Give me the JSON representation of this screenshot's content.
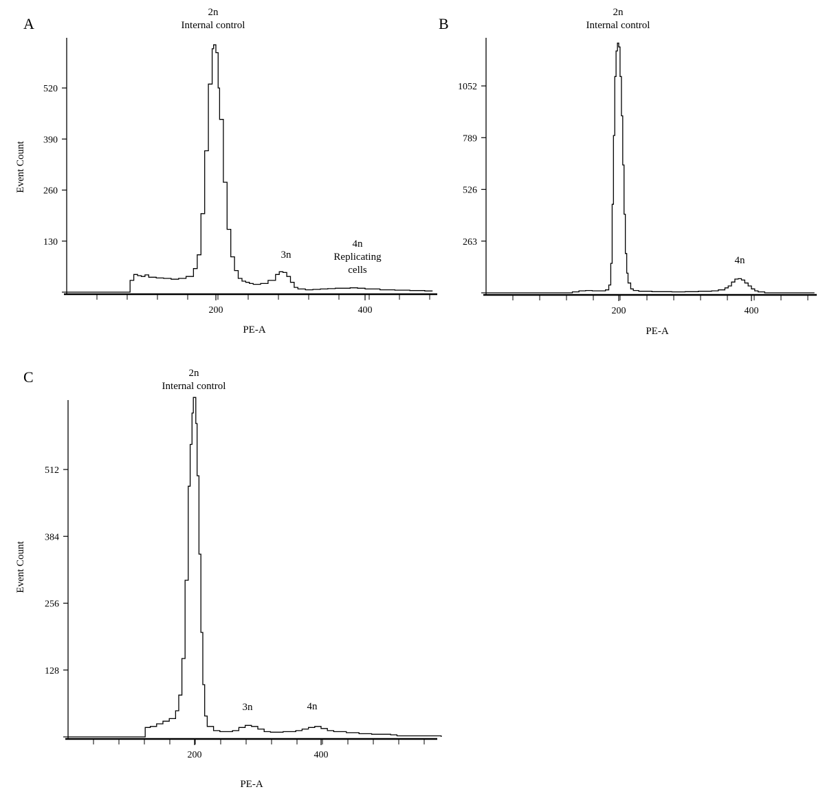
{
  "chart_data": [
    {
      "panel": "A",
      "type": "area",
      "xlabel": "PE-A",
      "ylabel": "Event Count",
      "xlim": [
        0,
        490
      ],
      "ylim": [
        0,
        630
      ],
      "xticks": [
        200,
        400
      ],
      "yticks": [
        130,
        260,
        390,
        520
      ],
      "annotations": [
        {
          "lines": [
            "2n",
            "Internal control"
          ],
          "x": 200
        },
        {
          "lines": [
            "3n"
          ],
          "x": 290
        },
        {
          "lines": [
            "4n",
            "Replicating",
            "cells"
          ],
          "x": 380
        }
      ],
      "x": [
        0,
        84,
        85,
        90,
        95,
        100,
        105,
        110,
        120,
        130,
        140,
        150,
        160,
        170,
        175,
        180,
        185,
        190,
        195,
        197,
        200,
        203,
        205,
        210,
        215,
        220,
        225,
        230,
        235,
        240,
        245,
        250,
        260,
        270,
        280,
        285,
        290,
        295,
        300,
        305,
        310,
        320,
        330,
        340,
        350,
        360,
        370,
        380,
        390,
        400,
        420,
        440,
        460,
        480,
        490
      ],
      "y": [
        0,
        0,
        30,
        45,
        42,
        40,
        44,
        38,
        36,
        35,
        33,
        35,
        40,
        60,
        95,
        200,
        360,
        530,
        620,
        630,
        610,
        520,
        440,
        280,
        160,
        90,
        55,
        35,
        28,
        25,
        22,
        20,
        22,
        30,
        45,
        52,
        50,
        40,
        25,
        12,
        8,
        6,
        7,
        8,
        9,
        10,
        10,
        11,
        10,
        8,
        6,
        5,
        4,
        3,
        2
      ]
    },
    {
      "panel": "B",
      "type": "area",
      "xlabel": "PE-A",
      "ylabel": "",
      "xlim": [
        0,
        495
      ],
      "ylim": [
        0,
        1270
      ],
      "xticks": [
        200,
        400
      ],
      "yticks": [
        263,
        526,
        789,
        1052
      ],
      "annotations": [
        {
          "lines": [
            "2n",
            "Internal control"
          ],
          "x": 200
        },
        {
          "lines": [
            "4n"
          ],
          "x": 380
        }
      ],
      "x": [
        0,
        100,
        130,
        140,
        150,
        160,
        170,
        180,
        185,
        188,
        190,
        192,
        194,
        196,
        198,
        200,
        202,
        204,
        206,
        208,
        210,
        212,
        214,
        218,
        222,
        230,
        250,
        280,
        300,
        320,
        340,
        350,
        360,
        365,
        370,
        375,
        380,
        385,
        390,
        395,
        400,
        405,
        410,
        420,
        495
      ],
      "y": [
        0,
        0,
        5,
        10,
        12,
        10,
        10,
        15,
        40,
        150,
        450,
        800,
        1100,
        1230,
        1270,
        1250,
        1100,
        900,
        650,
        400,
        200,
        100,
        50,
        20,
        12,
        8,
        6,
        5,
        6,
        8,
        10,
        15,
        25,
        35,
        55,
        70,
        72,
        65,
        50,
        35,
        20,
        10,
        5,
        0,
        0
      ]
    },
    {
      "panel": "C",
      "type": "area",
      "xlabel": "PE-A",
      "ylabel": "Event Count",
      "xlim": [
        0,
        590
      ],
      "ylim": [
        0,
        650
      ],
      "xticks": [
        200,
        400
      ],
      "yticks": [
        128,
        256,
        384,
        512
      ],
      "annotations": [
        {
          "lines": [
            "2n",
            "Internal control"
          ],
          "x": 200
        },
        {
          "lines": [
            "3n"
          ],
          "x": 285
        },
        {
          "lines": [
            "4n"
          ],
          "x": 385
        }
      ],
      "x": [
        0,
        120,
        122,
        130,
        140,
        150,
        160,
        170,
        175,
        180,
        185,
        190,
        193,
        196,
        198,
        200,
        202,
        204,
        207,
        210,
        213,
        216,
        220,
        230,
        240,
        250,
        260,
        270,
        280,
        290,
        300,
        310,
        320,
        340,
        360,
        370,
        380,
        390,
        400,
        410,
        420,
        440,
        460,
        480,
        500,
        510,
        520,
        590
      ],
      "y": [
        0,
        0,
        18,
        20,
        25,
        30,
        35,
        50,
        80,
        150,
        300,
        480,
        560,
        620,
        650,
        650,
        600,
        500,
        350,
        200,
        100,
        40,
        20,
        12,
        10,
        10,
        12,
        18,
        22,
        20,
        15,
        10,
        9,
        10,
        12,
        15,
        18,
        20,
        16,
        12,
        10,
        8,
        6,
        5,
        5,
        4,
        2,
        0
      ]
    }
  ]
}
